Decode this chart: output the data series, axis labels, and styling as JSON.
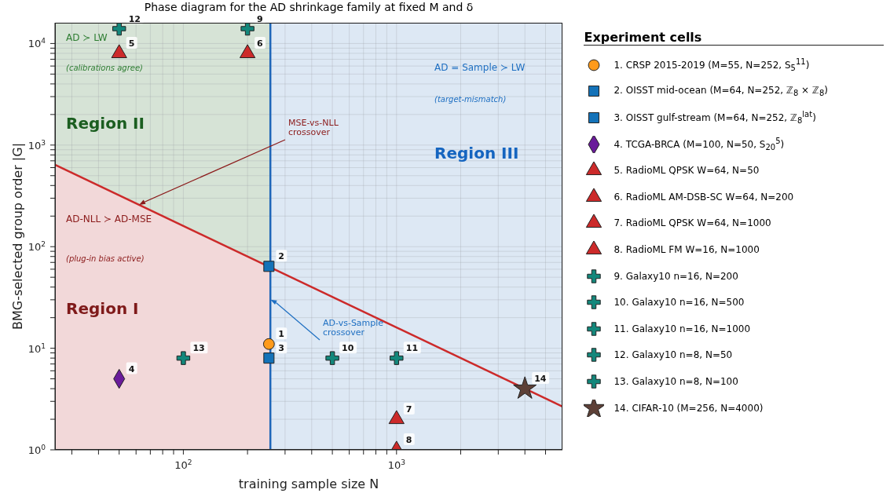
{
  "chart_data": {
    "type": "scatter",
    "title": "Phase diagram for the AD shrinkage family at fixed M and δ",
    "xlabel": "training sample size N",
    "ylabel": "BMG-selected group order |G|",
    "legend_title": "Experiment cells",
    "legend": "right",
    "log": "xy",
    "grid": true,
    "xlim": [
      25,
      6000
    ],
    "ylim": [
      1,
      16000
    ],
    "xticks": [
      {
        "value": 30,
        "label": null
      },
      {
        "value": 40,
        "label": null
      },
      {
        "value": 50,
        "label": null
      },
      {
        "value": 60,
        "label": null
      },
      {
        "value": 70,
        "label": null
      },
      {
        "value": 80,
        "label": null
      },
      {
        "value": 90,
        "label": null
      },
      {
        "value": 100,
        "label": "10$^{2}$"
      },
      {
        "value": 200,
        "label": null
      },
      {
        "value": 300,
        "label": null
      },
      {
        "value": 400,
        "label": null
      },
      {
        "value": 500,
        "label": null
      },
      {
        "value": 600,
        "label": null
      },
      {
        "value": 700,
        "label": null
      },
      {
        "value": 800,
        "label": null
      },
      {
        "value": 900,
        "label": null
      },
      {
        "value": 1000,
        "label": "10$^{3}$"
      },
      {
        "value": 2000,
        "label": null
      },
      {
        "value": 3000,
        "label": null
      },
      {
        "value": 4000,
        "label": null
      },
      {
        "value": 5000,
        "label": null
      }
    ],
    "yticks": [
      {
        "value": 1,
        "label": "10$^{0}$"
      },
      {
        "value": 2,
        "label": null
      },
      {
        "value": 3,
        "label": null
      },
      {
        "value": 4,
        "label": null
      },
      {
        "value": 5,
        "label": null
      },
      {
        "value": 6,
        "label": null
      },
      {
        "value": 7,
        "label": null
      },
      {
        "value": 8,
        "label": null
      },
      {
        "value": 9,
        "label": null
      },
      {
        "value": 10,
        "label": "10$^{1}$"
      },
      {
        "value": 20,
        "label": null
      },
      {
        "value": 30,
        "label": null
      },
      {
        "value": 40,
        "label": null
      },
      {
        "value": 50,
        "label": null
      },
      {
        "value": 60,
        "label": null
      },
      {
        "value": 70,
        "label": null
      },
      {
        "value": 80,
        "label": null
      },
      {
        "value": 90,
        "label": null
      },
      {
        "value": 100,
        "label": "10$^{2}$"
      },
      {
        "value": 200,
        "label": null
      },
      {
        "value": 300,
        "label": null
      },
      {
        "value": 400,
        "label": null
      },
      {
        "value": 500,
        "label": null
      },
      {
        "value": 600,
        "label": null
      },
      {
        "value": 700,
        "label": null
      },
      {
        "value": 800,
        "label": null
      },
      {
        "value": 900,
        "label": null
      },
      {
        "value": 1000,
        "label": "10$^{3}$"
      },
      {
        "value": 2000,
        "label": null
      },
      {
        "value": 3000,
        "label": null
      },
      {
        "value": 4000,
        "label": null
      },
      {
        "value": 5000,
        "label": null
      },
      {
        "value": 6000,
        "label": null
      },
      {
        "value": 7000,
        "label": null
      },
      {
        "value": 8000,
        "label": null
      },
      {
        "value": 9000,
        "label": null
      },
      {
        "value": 10000,
        "label": "10$^{4}$"
      }
    ],
    "bands": [
      {
        "axis": "x",
        "from": 25,
        "to": 256,
        "color": "#d6e3d6"
      },
      {
        "axis": "x",
        "from": 256,
        "to": 6000,
        "color": "#dde8f4"
      }
    ],
    "ref_lines": [
      {
        "axis": "x",
        "value": 256,
        "color": "#1f66b8"
      }
    ],
    "annotations": [
      "AD ≻ LW",
      "(calibrations agree)",
      "Region II",
      "AD-NLL ≻ AD-MSE",
      "(plug-in bias active)",
      "Region I",
      "AD = Sample ≻ LW",
      "(target-mismatch)",
      "Region III",
      {
        "text": "MSE-vs-NLL\ncrossover",
        "x": 62,
        "y": 258
      },
      {
        "text": "AD-vs-Sample\ncrossover",
        "x": 256,
        "y": 30
      },
      {
        "text": "1",
        "x": 252,
        "y": 11
      },
      {
        "text": "2",
        "x": 252,
        "y": 64
      },
      {
        "text": "3",
        "x": 252,
        "y": 8
      },
      {
        "text": "4",
        "x": 50,
        "y": 5
      },
      {
        "text": "5",
        "x": 50,
        "y": 8000
      },
      {
        "text": "6",
        "x": 200,
        "y": 8000
      },
      {
        "text": "7",
        "x": 1000,
        "y": 2
      },
      {
        "text": "8",
        "x": 1000,
        "y": 1
      },
      {
        "text": "9",
        "x": 200,
        "y": 14000
      },
      {
        "text": "10",
        "x": 500,
        "y": 8
      },
      {
        "text": "11",
        "x": 1000,
        "y": 8
      },
      {
        "text": "12",
        "x": 50,
        "y": 14000
      },
      {
        "text": "13",
        "x": 100,
        "y": 8
      },
      {
        "text": "14",
        "x": 4000,
        "y": 4
      }
    ],
    "series": [
      {
        "type": "area",
        "color": "#f2d8d9",
        "x": [
          25,
          256
        ],
        "values": [
          640,
          62.5
        ]
      },
      {
        "type": "line",
        "color": "#cc2a2a",
        "x": [
          25,
          6000
        ],
        "values": [
          640,
          2.67
        ]
      },
      {
        "name": "1.  CRSP 2015-2019  (M=55, N=252, S$_{5}$$^{11}$)",
        "color": "#ff9a1a",
        "marker": "circle",
        "x": [
          252
        ],
        "values": [
          11
        ]
      },
      {
        "name": "2.  OISST mid-ocean  (M=64, N=252, ℤ$_{8}$ × ℤ$_{8}$)",
        "color": "#1472b8",
        "marker": "square",
        "x": [
          252
        ],
        "values": [
          64
        ]
      },
      {
        "name": "3.  OISST gulf-stream  (M=64, N=252, ℤ$_{8}$$^{lat}$)",
        "color": "#1472b8",
        "marker": "square",
        "x": [
          252
        ],
        "values": [
          8
        ]
      },
      {
        "name": "4.  TCGA-BRCA  (M=100, N=50, S$_{20}$$^{5}$)",
        "color": "#6a1b9a",
        "marker": "diamond",
        "x": [
          50
        ],
        "values": [
          5
        ]
      },
      {
        "name": "5.  RadioML QPSK W=64, N=50",
        "color": "#cc2a2a",
        "marker": "triangle",
        "x": [
          50
        ],
        "values": [
          8000
        ]
      },
      {
        "name": "6.  RadioML AM-DSB-SC W=64, N=200",
        "color": "#cc2a2a",
        "marker": "triangle",
        "x": [
          200
        ],
        "values": [
          8000
        ]
      },
      {
        "name": "7.  RadioML QPSK W=64, N=1000",
        "color": "#cc2a2a",
        "marker": "triangle",
        "x": [
          1000
        ],
        "values": [
          2
        ]
      },
      {
        "name": "8.  RadioML FM W=16, N=1000",
        "color": "#cc2a2a",
        "marker": "triangle",
        "x": [
          1000
        ],
        "values": [
          1
        ]
      },
      {
        "name": "9.  Galaxy10 n=16, N=200",
        "color": "#13877b",
        "marker": "cross",
        "x": [
          200
        ],
        "values": [
          14000
        ]
      },
      {
        "name": "10.  Galaxy10 n=16, N=500",
        "color": "#13877b",
        "marker": "cross",
        "x": [
          500
        ],
        "values": [
          8
        ]
      },
      {
        "name": "11.  Galaxy10 n=16, N=1000",
        "color": "#13877b",
        "marker": "cross",
        "x": [
          1000
        ],
        "values": [
          8
        ]
      },
      {
        "name": "12.  Galaxy10 n=8, N=50",
        "color": "#13877b",
        "marker": "cross",
        "x": [
          50
        ],
        "values": [
          14000
        ]
      },
      {
        "name": "13.  Galaxy10 n=8, N=100",
        "color": "#13877b",
        "marker": "cross",
        "x": [
          100
        ],
        "values": [
          8
        ]
      },
      {
        "name": "14.  CIFAR-10  (M=256, N=4000)",
        "color": "#5d4037",
        "marker": "star",
        "x": [
          4000
        ],
        "values": [
          4
        ]
      }
    ]
  }
}
